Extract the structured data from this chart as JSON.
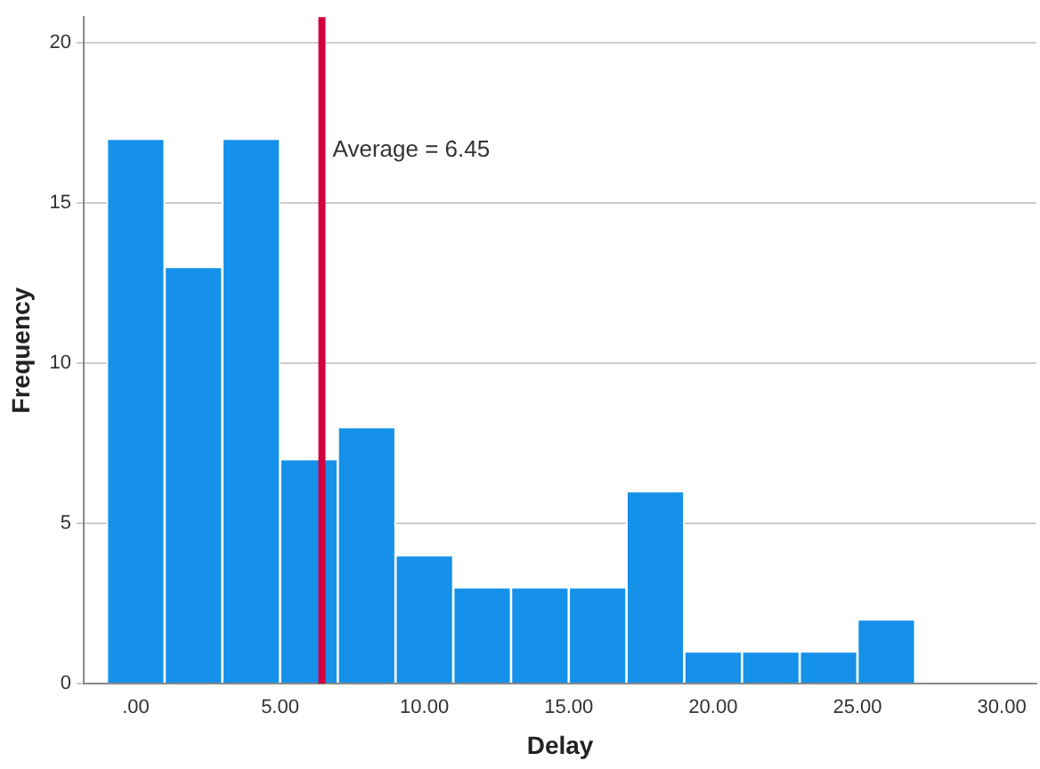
{
  "chart_data": {
    "type": "histogram",
    "xlabel": "Delay",
    "ylabel": "Frequency",
    "bins": [
      -1,
      1,
      3,
      5,
      7,
      9,
      11,
      13,
      15,
      17,
      19,
      21,
      23,
      25,
      27
    ],
    "values": [
      17,
      13,
      17,
      7,
      8,
      4,
      3,
      3,
      3,
      6,
      1,
      1,
      1,
      2
    ],
    "color": "#1591e9",
    "xlim": [
      -1.8,
      31.2
    ],
    "xticks": [
      {
        "value": 0,
        "label": ".00"
      },
      {
        "value": 5,
        "label": "5.00"
      },
      {
        "value": 10,
        "label": "10.00"
      },
      {
        "value": 15,
        "label": "15.00"
      },
      {
        "value": 20,
        "label": "20.00"
      },
      {
        "value": 25,
        "label": "25.00"
      },
      {
        "value": 30,
        "label": "30.00"
      }
    ],
    "ylim": [
      0,
      20.8
    ],
    "yticks": [
      0,
      5,
      10,
      15,
      20
    ],
    "grid": "y",
    "ref_lines": [
      {
        "axis": "x",
        "value": 6.45,
        "label": "Average = 6.45",
        "color": "#d2003c"
      }
    ]
  }
}
